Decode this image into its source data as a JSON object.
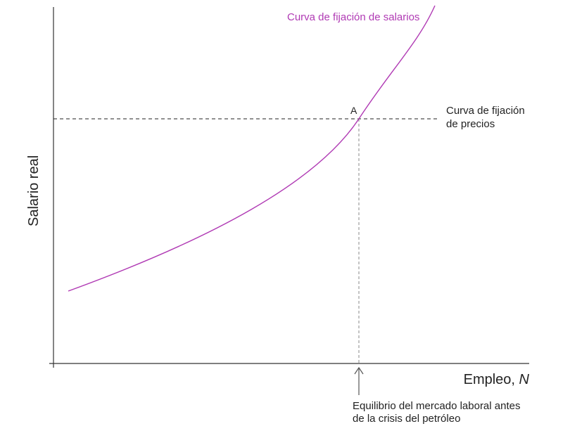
{
  "diagram": {
    "y_axis_label": "Salario real",
    "x_axis_label": "Empleo, ",
    "x_axis_label_var": "N",
    "wage_curve": {
      "label": "Curva de fijación de salarios",
      "color": "#b03ab4"
    },
    "price_curve": {
      "label_line1": "Curva de fijación",
      "label_line2": "de precios",
      "color": "#222222"
    },
    "point": {
      "label": "A"
    },
    "annotation": {
      "line1": "Equilibrio del mercado laboral antes",
      "line2": "de la crisis del petróleo"
    }
  }
}
